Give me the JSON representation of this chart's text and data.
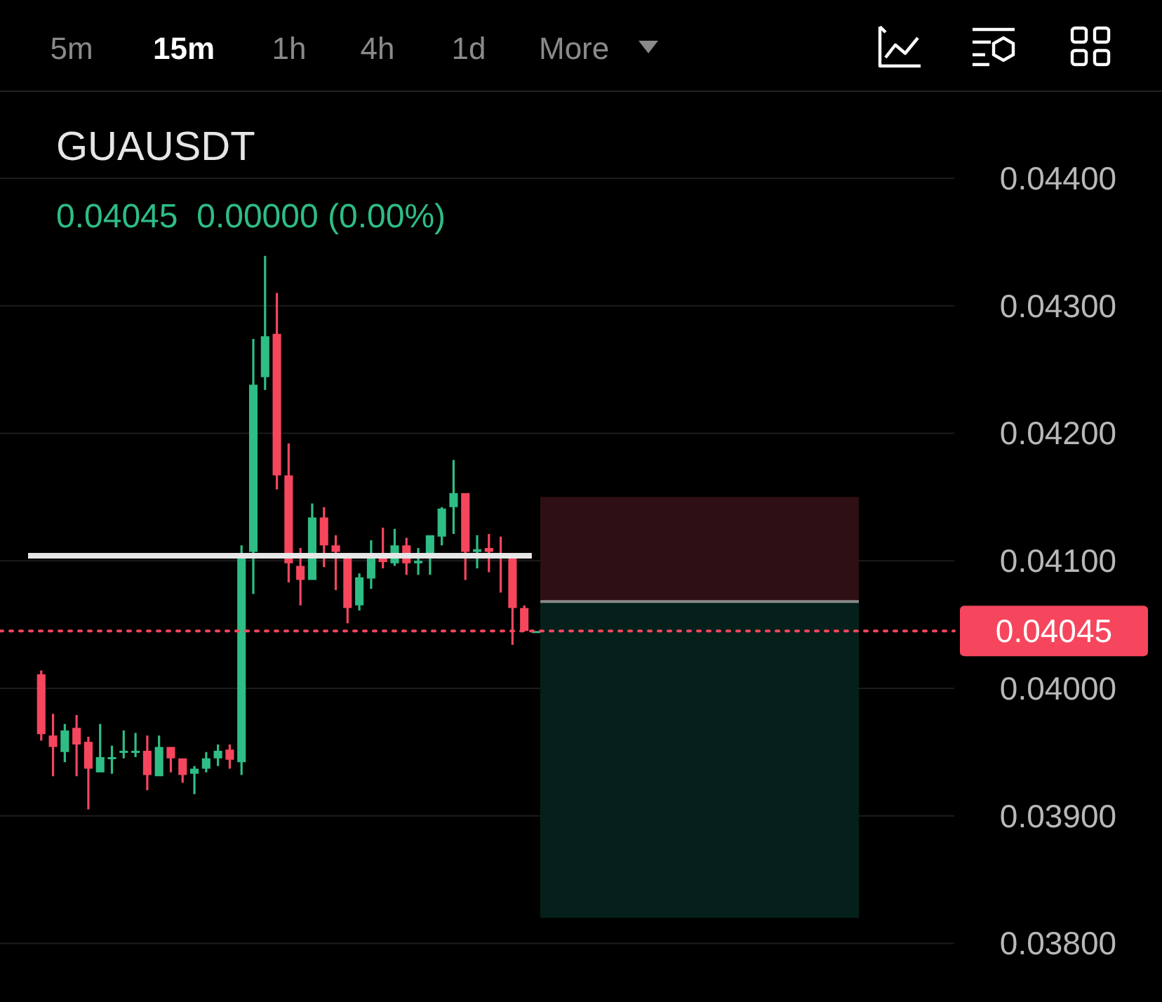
{
  "chart_data": {
    "type": "candlestick",
    "title": "GUAUSDT",
    "subtitle": "0.04045  0.00000 (0.00%)",
    "annotations": [
      "5m",
      "15m",
      "1h",
      "4h",
      "1d",
      "More"
    ],
    "categories": [
      null,
      null,
      null,
      null,
      null,
      null,
      null,
      null,
      null,
      null,
      null,
      null,
      null,
      null,
      null,
      null,
      null,
      null,
      null,
      null,
      null,
      null,
      null,
      null,
      null,
      null,
      null,
      null,
      null,
      null,
      null,
      null,
      null,
      null,
      null,
      null,
      null,
      null,
      null,
      null,
      null,
      null,
      null,
      null,
      null,
      null,
      null,
      null,
      null,
      null,
      null,
      null,
      null,
      null,
      null,
      null,
      null,
      null,
      null,
      null,
      null,
      null,
      null,
      null,
      null,
      null,
      null,
      null,
      null,
      null,
      null,
      null,
      null,
      null,
      null,
      null,
      null,
      null,
      null,
      null,
      null
    ],
    "ohlc": [
      null,
      null,
      null,
      [
        0.04011,
        0.04014,
        0.03959,
        0.03964
      ],
      [
        0.03963,
        0.0398,
        0.03931,
        0.03954
      ],
      [
        0.0395,
        0.03972,
        0.03942,
        0.03967
      ],
      [
        0.03969,
        0.03979,
        0.03931,
        0.03956
      ],
      [
        0.03958,
        0.03962,
        0.03905,
        0.03937
      ],
      [
        0.03934,
        0.03972,
        0.03934,
        0.03946
      ],
      [
        0.03945,
        0.03955,
        0.03933,
        0.03946
      ],
      [
        0.0395,
        0.03967,
        0.03945,
        0.03951
      ],
      [
        0.0395,
        0.03965,
        0.03946,
        0.03951
      ],
      [
        0.03951,
        0.03963,
        0.0392,
        0.03932
      ],
      [
        0.03931,
        0.03963,
        0.03931,
        0.03954
      ],
      [
        0.03954,
        0.03954,
        0.03934,
        0.03945
      ],
      [
        0.03945,
        0.03945,
        0.03926,
        0.03932
      ],
      [
        0.03933,
        0.03939,
        0.03917,
        0.03937
      ],
      [
        0.03937,
        0.0395,
        0.03934,
        0.03945
      ],
      [
        0.03945,
        0.03956,
        0.03939,
        0.03951
      ],
      [
        0.03952,
        0.03956,
        0.03937,
        0.03944
      ],
      [
        0.03942,
        0.04112,
        0.03932,
        0.04103
      ],
      [
        0.04107,
        0.04274,
        0.04074,
        0.04238
      ],
      [
        0.04244,
        0.04339,
        0.04234,
        0.04276
      ],
      [
        0.04278,
        0.0431,
        0.04156,
        0.04167
      ],
      [
        0.04167,
        0.04192,
        0.04083,
        0.04098
      ],
      [
        0.04096,
        0.0411,
        0.04065,
        0.04085
      ],
      [
        0.04085,
        0.04145,
        0.04085,
        0.04134
      ],
      [
        0.04134,
        0.04142,
        0.04095,
        0.04112
      ],
      [
        0.04112,
        0.0412,
        0.04077,
        0.04107
      ],
      [
        0.04103,
        0.04103,
        0.04051,
        0.04063
      ],
      [
        0.04065,
        0.0409,
        0.04061,
        0.04087
      ],
      [
        0.04086,
        0.04116,
        0.04078,
        0.04102
      ],
      [
        0.04102,
        0.04126,
        0.04094,
        0.04099
      ],
      [
        0.04098,
        0.04125,
        0.04096,
        0.04112
      ],
      [
        0.04112,
        0.04118,
        0.04089,
        0.04098
      ],
      [
        0.04098,
        0.0411,
        0.04089,
        0.041
      ],
      [
        0.04102,
        0.0412,
        0.04089,
        0.0412
      ],
      [
        0.04119,
        0.04142,
        0.04112,
        0.04141
      ],
      [
        0.04142,
        0.04179,
        0.04121,
        0.04153
      ],
      [
        0.04153,
        0.04153,
        0.04085,
        0.04107
      ],
      [
        0.04107,
        0.0412,
        0.04094,
        0.04109
      ],
      [
        0.0411,
        0.04121,
        0.04091,
        0.04107
      ],
      [
        0.04104,
        0.04119,
        0.04075,
        0.04103
      ],
      [
        0.04102,
        0.04102,
        0.04034,
        0.04063
      ],
      [
        0.04063,
        0.04065,
        0.04045,
        0.04045
      ],
      [
        0.04045,
        0.04045,
        0.04045,
        0.04045
      ],
      null,
      null,
      null,
      null,
      null,
      null,
      null,
      null,
      null,
      null,
      null,
      null,
      null,
      null,
      null,
      null,
      null,
      null,
      null,
      null,
      null,
      null,
      null,
      null,
      null,
      null,
      null,
      null,
      null,
      null,
      null,
      null,
      null,
      null,
      null
    ],
    "ylim": [
      0.03754,
      0.04466
    ],
    "yticks": [
      {
        "value": 0.038,
        "label": "0.03800"
      },
      {
        "value": 0.039,
        "label": "0.03900"
      },
      {
        "value": 0.04,
        "label": "0.04000"
      },
      {
        "value": 0.041,
        "label": "0.04100"
      },
      {
        "value": 0.042,
        "label": "0.04200"
      },
      {
        "value": 0.043,
        "label": "0.04300"
      },
      {
        "value": 0.044,
        "label": "0.04400"
      }
    ],
    "ref_lines": [
      {
        "axis": "y",
        "value": 0.04104,
        "color": "#e6e6e6",
        "line_style": "solid"
      },
      {
        "axis": "y",
        "value": 0.04068,
        "color": "#8a8a8a",
        "line_style": "solid"
      },
      {
        "axis": "y",
        "value": 0.04045,
        "label": "0.04045",
        "color": "#f6465d",
        "line_style": "dotted"
      }
    ],
    "bands": [
      {
        "axis": "y",
        "from": 0.04068,
        "to": 0.0415,
        "color": "#2e0f13"
      },
      {
        "axis": "y",
        "from": 0.0382,
        "to": 0.04068,
        "color": "#05201b"
      }
    ],
    "grid": "y"
  }
}
